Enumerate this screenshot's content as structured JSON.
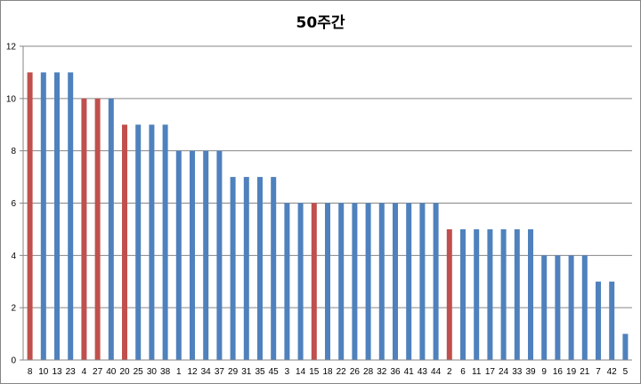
{
  "chart_data": {
    "type": "bar",
    "title": "50주간",
    "xlabel": "",
    "ylabel": "",
    "ylim": [
      0,
      12
    ],
    "y_ticks": [
      0,
      2,
      4,
      6,
      8,
      10,
      12
    ],
    "grid": true,
    "legend": "none",
    "colors": {
      "default": "#4F81BD",
      "highlight": "#C0504D"
    },
    "categories": [
      "8",
      "10",
      "13",
      "23",
      "4",
      "27",
      "40",
      "20",
      "25",
      "30",
      "38",
      "1",
      "12",
      "34",
      "37",
      "29",
      "31",
      "35",
      "45",
      "3",
      "14",
      "15",
      "18",
      "22",
      "26",
      "28",
      "32",
      "36",
      "41",
      "43",
      "44",
      "2",
      "6",
      "11",
      "17",
      "24",
      "33",
      "39",
      "9",
      "16",
      "19",
      "21",
      "7",
      "42",
      "5"
    ],
    "values": [
      11,
      11,
      11,
      11,
      10,
      10,
      10,
      9,
      9,
      9,
      9,
      8,
      8,
      8,
      8,
      7,
      7,
      7,
      7,
      6,
      6,
      6,
      6,
      6,
      6,
      6,
      6,
      6,
      6,
      6,
      6,
      5,
      5,
      5,
      5,
      5,
      5,
      5,
      4,
      4,
      4,
      4,
      3,
      3,
      1
    ],
    "highlighted": [
      "8",
      "4",
      "27",
      "20",
      "15",
      "2"
    ]
  }
}
